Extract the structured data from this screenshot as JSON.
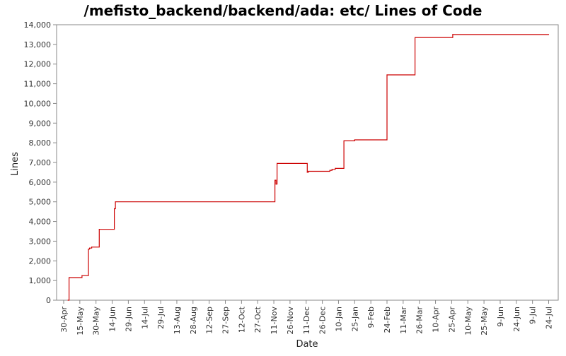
{
  "chart_data": {
    "type": "line",
    "title": "/mefisto_backend/backend/ada: etc/ Lines of Code",
    "xlabel": "Date",
    "ylabel": "Lines",
    "ylim": [
      0,
      14000
    ],
    "yticks": [
      0,
      1000,
      2000,
      3000,
      4000,
      5000,
      6000,
      7000,
      8000,
      9000,
      10000,
      11000,
      12000,
      13000,
      14000
    ],
    "ytick_labels": [
      "0",
      "1,000",
      "2,000",
      "3,000",
      "4,000",
      "5,000",
      "6,000",
      "7,000",
      "8,000",
      "9,000",
      "10,000",
      "11,000",
      "12,000",
      "13,000",
      "14,000"
    ],
    "xticks": [
      "30-Apr",
      "15-May",
      "30-May",
      "14-Jun",
      "29-Jun",
      "14-Jul",
      "29-Jul",
      "13-Aug",
      "28-Aug",
      "12-Sep",
      "27-Sep",
      "12-Oct",
      "27-Oct",
      "11-Nov",
      "26-Nov",
      "11-Dec",
      "26-Dec",
      "10-Jan",
      "25-Jan",
      "9-Feb",
      "24-Feb",
      "11-Mar",
      "26-Mar",
      "10-Apr",
      "25-Apr",
      "10-May",
      "25-May",
      "9-Jun",
      "24-Jun",
      "9-Jul",
      "24-Jul"
    ],
    "grid": false,
    "line_color": "#cc0000",
    "series": [
      {
        "step": true,
        "x": [
          "2008-05-04",
          "2008-05-05",
          "2008-05-17",
          "2008-05-23",
          "2008-05-24",
          "2008-05-26",
          "2008-06-02",
          "2008-06-16",
          "2008-06-17",
          "2008-11-12",
          "2008-11-13",
          "2008-11-14",
          "2008-12-12",
          "2008-12-13",
          "2009-01-02",
          "2009-01-04",
          "2009-01-07",
          "2009-01-15",
          "2009-01-25",
          "2009-02-24",
          "2009-03-22",
          "2009-04-26",
          "2009-07-24"
        ],
        "values": [
          0,
          1150,
          1250,
          2600,
          2650,
          2700,
          3600,
          4650,
          5000,
          6100,
          5900,
          6950,
          6500,
          6550,
          6600,
          6650,
          6700,
          8100,
          8150,
          11450,
          13350,
          13500,
          13500
        ]
      }
    ]
  }
}
